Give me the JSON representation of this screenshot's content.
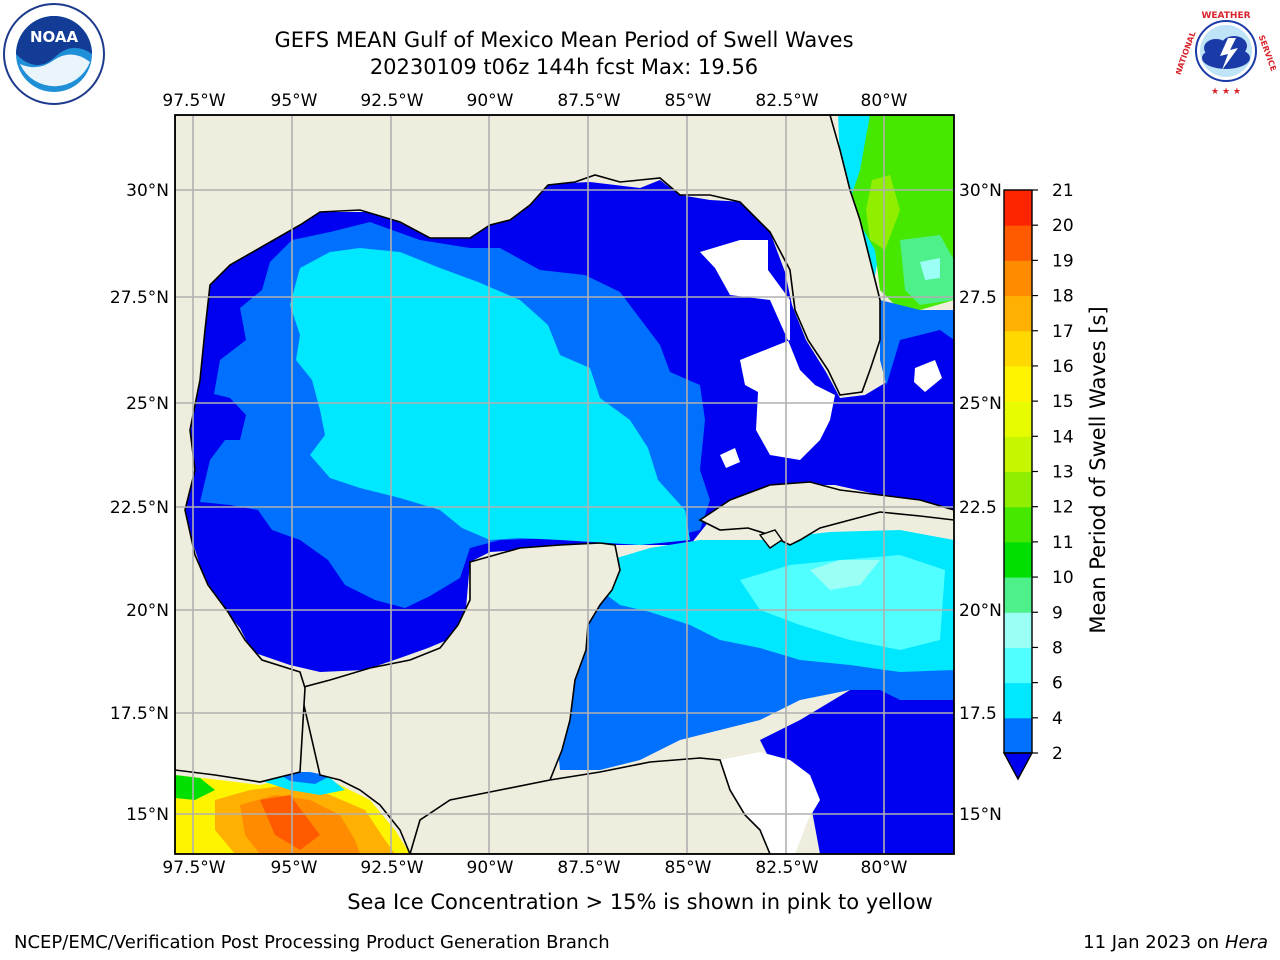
{
  "title_line1": "GEFS MEAN Gulf of Mexico Mean Period of Swell Waves",
  "title_line2": "20230109 t06z 144h fcst   Max: 19.56",
  "footnote": "Sea Ice Concentration > 15% is shown in pink to yellow",
  "credit_left": "NCEP/EMC/Verification Post Processing Product Generation Branch",
  "credit_right_date": "11 Jan 2023 on ",
  "credit_right_host": "Hera",
  "logos": {
    "noaa": {
      "text": "NOAA",
      "icon": "noaa-seal-icon"
    },
    "nws": {
      "ring_text": "NATIONAL WEATHER SERVICE",
      "icon": "nws-logo-icon"
    }
  },
  "map": {
    "lon_ticks": [
      "97.5°W",
      "95°W",
      "92.5°W",
      "90°W",
      "87.5°W",
      "85°W",
      "82.5°W",
      "80°W"
    ],
    "lat_ticks_left": [
      "30°N",
      "27.5°N",
      "25°N",
      "22.5°N",
      "20°N",
      "17.5°N",
      "15°N"
    ],
    "lat_ticks_right": [
      "30°N",
      "27.5",
      "25°N",
      "22.5",
      "20°N",
      "17.5",
      "15°N"
    ],
    "land_color": "#efedde",
    "grid_color": "#b0b0b0"
  },
  "colorbar": {
    "label": "Mean Period of Swell Waves [s]",
    "ticks": [
      "2",
      "4",
      "6",
      "8",
      "9",
      "10",
      "11",
      "12",
      "13",
      "14",
      "15",
      "16",
      "17",
      "18",
      "19",
      "20",
      "21"
    ],
    "colors": [
      "#0070ff",
      "#00e8ff",
      "#50ffff",
      "#9cfff6",
      "#4ef089",
      "#00e000",
      "#46e800",
      "#90ee00",
      "#c6f600",
      "#e8fc00",
      "#fff400",
      "#ffd800",
      "#ffb000",
      "#ff8c00",
      "#ff5a00",
      "#ff2400"
    ],
    "extend_color": "#0000f0"
  }
}
